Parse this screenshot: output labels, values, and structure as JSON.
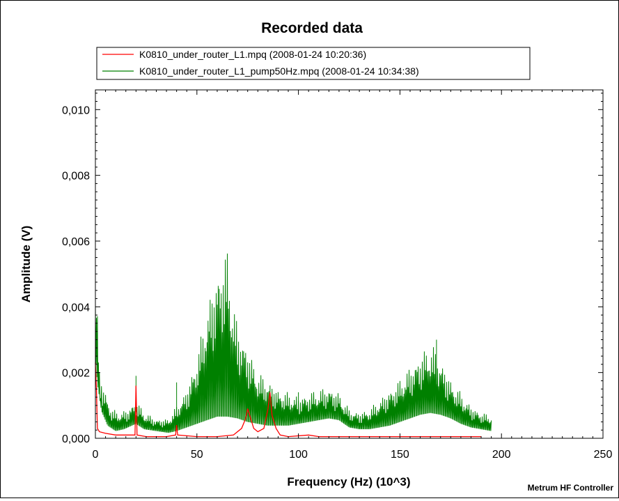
{
  "chart_data": {
    "type": "line",
    "title": "Recorded data",
    "xlabel": "Frequency (Hz) (10^3)",
    "ylabel": "Amplitude (V)",
    "footer": "Metrum HF Controller",
    "xlim": [
      0,
      250
    ],
    "ylim": [
      0,
      0.0106
    ],
    "x_ticks": [
      0,
      50,
      100,
      150,
      200,
      250
    ],
    "x_tick_labels": [
      "0",
      "50",
      "100",
      "150",
      "200",
      "250"
    ],
    "y_ticks": [
      0,
      0.002,
      0.004,
      0.006,
      0.008,
      0.01
    ],
    "y_tick_labels": [
      "0,000",
      "0,002",
      "0,004",
      "0,006",
      "0,008",
      "0,010"
    ],
    "grid": false,
    "legend_position": "top",
    "series": [
      {
        "name": "K0810_under_router_L1.mpq (2008-01-24 10:20:36)",
        "color": "#ff0000",
        "points": [
          [
            0,
            0.0023
          ],
          [
            0.5,
            0.0015
          ],
          [
            1,
            0.0003
          ],
          [
            2,
            0.0002
          ],
          [
            5,
            0.00015
          ],
          [
            10,
            0.0001
          ],
          [
            15,
            0.0001
          ],
          [
            19.5,
            0.0001
          ],
          [
            20,
            0.0016
          ],
          [
            20.5,
            0.0001
          ],
          [
            25,
            5e-05
          ],
          [
            35,
            5e-05
          ],
          [
            39.5,
            0.0001
          ],
          [
            40,
            0.0004
          ],
          [
            40.5,
            0.0001
          ],
          [
            50,
            5e-05
          ],
          [
            60,
            5e-05
          ],
          [
            68,
            0.0001
          ],
          [
            72,
            0.0003
          ],
          [
            74,
            0.0006
          ],
          [
            75,
            0.0009
          ],
          [
            76,
            0.0007
          ],
          [
            78,
            0.0003
          ],
          [
            80,
            0.0002
          ],
          [
            83,
            0.0003
          ],
          [
            85,
            0.0009
          ],
          [
            86,
            0.0014
          ],
          [
            87,
            0.0007
          ],
          [
            89,
            0.0003
          ],
          [
            91,
            0.0001
          ],
          [
            95,
            5e-05
          ],
          [
            105,
            0.0001
          ],
          [
            110,
            5e-05
          ],
          [
            130,
            5e-05
          ],
          [
            150,
            5e-05
          ],
          [
            180,
            5e-05
          ],
          [
            190,
            5e-05
          ]
        ]
      },
      {
        "name": "K0810_under_router_L1_pump50Hz.mpq (2008-01-24 10:34:38)",
        "color": "#008000",
        "baseline": [
          [
            0,
            0.0045
          ],
          [
            1,
            0.003
          ],
          [
            3,
            0.0015
          ],
          [
            6,
            0.0007
          ],
          [
            10,
            0.0004
          ],
          [
            14,
            0.0005
          ],
          [
            18,
            0.0007
          ],
          [
            20,
            0.0008
          ],
          [
            24,
            0.0005
          ],
          [
            30,
            0.0004
          ],
          [
            36,
            0.0003
          ],
          [
            40,
            0.0004
          ],
          [
            45,
            0.0006
          ],
          [
            50,
            0.0008
          ],
          [
            55,
            0.001
          ],
          [
            60,
            0.0012
          ],
          [
            65,
            0.0012
          ],
          [
            70,
            0.0011
          ],
          [
            75,
            0.0009
          ],
          [
            80,
            0.0008
          ],
          [
            85,
            0.0007
          ],
          [
            90,
            0.0007
          ],
          [
            95,
            0.0007
          ],
          [
            100,
            0.0008
          ],
          [
            105,
            0.0009
          ],
          [
            110,
            0.001
          ],
          [
            115,
            0.0011
          ],
          [
            120,
            0.001
          ],
          [
            125,
            0.0006
          ],
          [
            130,
            0.0005
          ],
          [
            135,
            0.0005
          ],
          [
            140,
            0.0006
          ],
          [
            145,
            0.0007
          ],
          [
            150,
            0.0009
          ],
          [
            155,
            0.0011
          ],
          [
            160,
            0.0013
          ],
          [
            165,
            0.0014
          ],
          [
            170,
            0.0013
          ],
          [
            175,
            0.0011
          ],
          [
            180,
            0.0008
          ],
          [
            185,
            0.0006
          ],
          [
            190,
            0.0005
          ],
          [
            195,
            0.0004
          ]
        ],
        "peak_envelope": [
          [
            0,
            0.0052
          ],
          [
            1,
            0.004
          ],
          [
            2,
            0.0022
          ],
          [
            4,
            0.0016
          ],
          [
            8,
            0.0009
          ],
          [
            12,
            0.0008
          ],
          [
            16,
            0.0009
          ],
          [
            20,
            0.0012
          ],
          [
            24,
            0.0008
          ],
          [
            30,
            0.0006
          ],
          [
            36,
            0.0006
          ],
          [
            40,
            0.001
          ],
          [
            45,
            0.0015
          ],
          [
            50,
            0.0025
          ],
          [
            55,
            0.004
          ],
          [
            60,
            0.0052
          ],
          [
            63,
            0.0056
          ],
          [
            65,
            0.0058
          ],
          [
            67,
            0.0045
          ],
          [
            70,
            0.0035
          ],
          [
            75,
            0.0028
          ],
          [
            80,
            0.002
          ],
          [
            85,
            0.0018
          ],
          [
            90,
            0.0015
          ],
          [
            95,
            0.0014
          ],
          [
            100,
            0.0013
          ],
          [
            105,
            0.0014
          ],
          [
            110,
            0.0015
          ],
          [
            115,
            0.0016
          ],
          [
            120,
            0.0014
          ],
          [
            125,
            0.0009
          ],
          [
            130,
            0.0008
          ],
          [
            135,
            0.0009
          ],
          [
            140,
            0.0012
          ],
          [
            145,
            0.0015
          ],
          [
            150,
            0.0018
          ],
          [
            155,
            0.0022
          ],
          [
            160,
            0.0026
          ],
          [
            165,
            0.0029
          ],
          [
            168,
            0.0027
          ],
          [
            172,
            0.0022
          ],
          [
            175,
            0.0018
          ],
          [
            180,
            0.0014
          ],
          [
            185,
            0.001
          ],
          [
            190,
            0.0008
          ],
          [
            195,
            0.0007
          ]
        ],
        "spikes": [
          [
            20,
            0.0019
          ],
          [
            40,
            0.0017
          ],
          [
            100,
            0.0014
          ],
          [
            168,
            0.003
          ]
        ]
      }
    ]
  }
}
